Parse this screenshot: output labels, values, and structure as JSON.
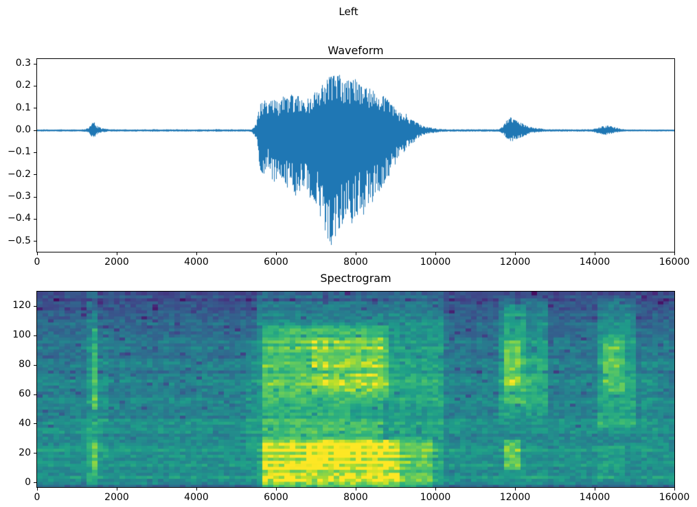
{
  "figure": {
    "title": "Left",
    "background_color": "#ffffff",
    "axis_color": "#000000"
  },
  "chart_data": [
    {
      "type": "line",
      "title": "Waveform",
      "line_color": "#1f77b4",
      "xlim": [
        0,
        16000
      ],
      "ylim": [
        -0.547,
        0.322
      ],
      "x_ticks": [
        {
          "v": 0,
          "label": "0"
        },
        {
          "v": 2000,
          "label": "2000"
        },
        {
          "v": 4000,
          "label": "4000"
        },
        {
          "v": 6000,
          "label": "6000"
        },
        {
          "v": 8000,
          "label": "8000"
        },
        {
          "v": 10000,
          "label": "10000"
        },
        {
          "v": 12000,
          "label": "12000"
        },
        {
          "v": 14000,
          "label": "14000"
        },
        {
          "v": 16000,
          "label": "16000"
        }
      ],
      "y_ticks": [
        {
          "v": 0.3,
          "label": "0.3"
        },
        {
          "v": 0.2,
          "label": "0.2"
        },
        {
          "v": 0.1,
          "label": "0.1"
        },
        {
          "v": 0.0,
          "label": "0.0"
        },
        {
          "v": -0.1,
          "label": "−0.1"
        },
        {
          "v": -0.2,
          "label": "−0.2"
        },
        {
          "v": -0.3,
          "label": "−0.3"
        },
        {
          "v": -0.4,
          "label": "−0.4"
        },
        {
          "v": -0.5,
          "label": "−0.5"
        }
      ],
      "sample_step": 100,
      "peak_positive": 0.27,
      "peak_negative": -0.52,
      "envelope_pos": [
        0.004,
        0.004,
        0.005,
        0.004,
        0.004,
        0.004,
        0.005,
        0.004,
        0.004,
        0.005,
        0.004,
        0.004,
        0.006,
        0.012,
        0.045,
        0.022,
        0.012,
        0.008,
        0.006,
        0.005,
        0.005,
        0.004,
        0.005,
        0.004,
        0.005,
        0.005,
        0.004,
        0.005,
        0.004,
        0.006,
        0.005,
        0.004,
        0.005,
        0.005,
        0.004,
        0.005,
        0.004,
        0.005,
        0.005,
        0.004,
        0.005,
        0.005,
        0.004,
        0.005,
        0.004,
        0.006,
        0.005,
        0.004,
        0.005,
        0.005,
        0.004,
        0.005,
        0.005,
        0.004,
        0.006,
        0.03,
        0.12,
        0.14,
        0.11,
        0.15,
        0.14,
        0.12,
        0.16,
        0.14,
        0.17,
        0.15,
        0.16,
        0.13,
        0.15,
        0.16,
        0.18,
        0.2,
        0.22,
        0.25,
        0.26,
        0.27,
        0.25,
        0.22,
        0.24,
        0.23,
        0.24,
        0.22,
        0.2,
        0.21,
        0.19,
        0.17,
        0.15,
        0.16,
        0.14,
        0.12,
        0.1,
        0.08,
        0.09,
        0.07,
        0.05,
        0.04,
        0.03,
        0.02,
        0.015,
        0.012,
        0.01,
        0.008,
        0.006,
        0.005,
        0.005,
        0.005,
        0.005,
        0.005,
        0.005,
        0.005,
        0.005,
        0.005,
        0.005,
        0.005,
        0.005,
        0.005,
        0.005,
        0.02,
        0.05,
        0.07,
        0.05,
        0.04,
        0.03,
        0.02,
        0.015,
        0.012,
        0.01,
        0.008,
        0.005,
        0.005,
        0.005,
        0.005,
        0.005,
        0.005,
        0.005,
        0.005,
        0.005,
        0.005,
        0.005,
        0.005,
        0.008,
        0.015,
        0.02,
        0.022,
        0.02,
        0.015,
        0.01,
        0.006,
        0.004,
        0.004,
        0.004,
        0.004,
        0.004,
        0.004,
        0.004,
        0.004,
        0.004,
        0.004,
        0.004,
        0.004,
        0.004
      ],
      "envelope_neg": [
        -0.004,
        -0.004,
        -0.005,
        -0.004,
        -0.004,
        -0.004,
        -0.005,
        -0.004,
        -0.004,
        -0.005,
        -0.004,
        -0.004,
        -0.006,
        -0.01,
        -0.04,
        -0.018,
        -0.01,
        -0.007,
        -0.005,
        -0.005,
        -0.005,
        -0.004,
        -0.005,
        -0.004,
        -0.005,
        -0.005,
        -0.004,
        -0.005,
        -0.004,
        -0.006,
        -0.005,
        -0.004,
        -0.005,
        -0.005,
        -0.004,
        -0.005,
        -0.004,
        -0.005,
        -0.005,
        -0.004,
        -0.005,
        -0.005,
        -0.004,
        -0.005,
        -0.004,
        -0.006,
        -0.005,
        -0.004,
        -0.005,
        -0.005,
        -0.004,
        -0.005,
        -0.005,
        -0.004,
        -0.008,
        -0.04,
        -0.18,
        -0.2,
        -0.16,
        -0.22,
        -0.24,
        -0.2,
        -0.23,
        -0.27,
        -0.25,
        -0.3,
        -0.28,
        -0.26,
        -0.32,
        -0.3,
        -0.33,
        -0.38,
        -0.45,
        -0.5,
        -0.52,
        -0.48,
        -0.5,
        -0.42,
        -0.38,
        -0.42,
        -0.4,
        -0.36,
        -0.38,
        -0.35,
        -0.33,
        -0.3,
        -0.28,
        -0.25,
        -0.22,
        -0.2,
        -0.16,
        -0.12,
        -0.1,
        -0.08,
        -0.06,
        -0.05,
        -0.03,
        -0.02,
        -0.015,
        -0.012,
        -0.01,
        -0.008,
        -0.006,
        -0.005,
        -0.005,
        -0.005,
        -0.005,
        -0.005,
        -0.005,
        -0.005,
        -0.005,
        -0.005,
        -0.005,
        -0.005,
        -0.005,
        -0.005,
        -0.005,
        -0.015,
        -0.04,
        -0.05,
        -0.045,
        -0.035,
        -0.03,
        -0.02,
        -0.012,
        -0.01,
        -0.008,
        -0.006,
        -0.005,
        -0.005,
        -0.005,
        -0.005,
        -0.005,
        -0.005,
        -0.005,
        -0.005,
        -0.005,
        -0.005,
        -0.005,
        -0.005,
        -0.008,
        -0.014,
        -0.018,
        -0.02,
        -0.018,
        -0.012,
        -0.008,
        -0.005,
        -0.004,
        -0.004,
        -0.004,
        -0.004,
        -0.004,
        -0.004,
        -0.004,
        -0.004,
        -0.004,
        -0.004,
        -0.004,
        -0.004,
        -0.004
      ]
    },
    {
      "type": "heatmap",
      "title": "Spectrogram",
      "colormap": "viridis",
      "xlim": [
        0,
        16000
      ],
      "ylim_bins": [
        -3,
        130
      ],
      "x_ticks": [
        {
          "v": 0,
          "label": "0"
        },
        {
          "v": 2000,
          "label": "2000"
        },
        {
          "v": 4000,
          "label": "4000"
        },
        {
          "v": 6000,
          "label": "6000"
        },
        {
          "v": 8000,
          "label": "8000"
        },
        {
          "v": 10000,
          "label": "10000"
        },
        {
          "v": 12000,
          "label": "12000"
        },
        {
          "v": 14000,
          "label": "14000"
        },
        {
          "v": 16000,
          "label": "16000"
        }
      ],
      "y_ticks": [
        {
          "v": 0,
          "label": "0"
        },
        {
          "v": 20,
          "label": "20"
        },
        {
          "v": 40,
          "label": "40"
        },
        {
          "v": 60,
          "label": "60"
        },
        {
          "v": 80,
          "label": "80"
        },
        {
          "v": 100,
          "label": "100"
        },
        {
          "v": 120,
          "label": "120"
        }
      ],
      "colormap_stops": [
        [
          0.0,
          "#440154"
        ],
        [
          0.125,
          "#482878"
        ],
        [
          0.25,
          "#3e4989"
        ],
        [
          0.375,
          "#31688e"
        ],
        [
          0.5,
          "#26828e"
        ],
        [
          0.625,
          "#1f9e89"
        ],
        [
          0.75,
          "#35b779"
        ],
        [
          0.875,
          "#6ece58"
        ],
        [
          0.95,
          "#b5de2b"
        ],
        [
          1.0,
          "#fde725"
        ]
      ],
      "grid": {
        "cols": 116,
        "rows": 65
      },
      "base_profile": [
        {
          "f": [
            -3,
            4
          ],
          "v": 0.52
        },
        {
          "f": [
            4,
            28
          ],
          "v": 0.58
        },
        {
          "f": [
            28,
            45
          ],
          "v": 0.54
        },
        {
          "f": [
            45,
            75
          ],
          "v": 0.5
        },
        {
          "f": [
            75,
            100
          ],
          "v": 0.46
        },
        {
          "f": [
            100,
            112
          ],
          "v": 0.4
        },
        {
          "f": [
            112,
            122
          ],
          "v": 0.33
        },
        {
          "f": [
            122,
            131
          ],
          "v": 0.27
        }
      ],
      "region_format": [
        "t0",
        "t1",
        "f0",
        "f1",
        "add"
      ],
      "regions": [
        [
          1300,
          1560,
          -3,
          130,
          0.12
        ],
        [
          1330,
          1530,
          50,
          105,
          0.18
        ],
        [
          1330,
          1530,
          5,
          30,
          0.15
        ],
        [
          1560,
          1780,
          15,
          105,
          0.06
        ],
        [
          5200,
          5500,
          20,
          100,
          0.06
        ],
        [
          5500,
          10200,
          -3,
          130,
          0.1
        ],
        [
          5500,
          10200,
          108,
          124,
          0.06
        ],
        [
          5600,
          9100,
          -3,
          30,
          0.3
        ],
        [
          9100,
          9950,
          -3,
          30,
          0.16
        ],
        [
          5600,
          8800,
          58,
          108,
          0.24
        ],
        [
          6900,
          8700,
          62,
          100,
          0.08
        ],
        [
          6700,
          8800,
          14,
          30,
          0.06
        ],
        [
          5700,
          8700,
          30,
          58,
          0.12
        ],
        [
          8800,
          10200,
          45,
          108,
          0.08
        ],
        [
          7900,
          10100,
          42,
          56,
          -0.06
        ],
        [
          11650,
          12850,
          45,
          126,
          0.15
        ],
        [
          11700,
          12300,
          55,
          122,
          0.12
        ],
        [
          11780,
          12180,
          66,
          98,
          0.12
        ],
        [
          11700,
          12150,
          10,
          30,
          0.26
        ],
        [
          12300,
          12850,
          58,
          88,
          0.06
        ],
        [
          11650,
          12850,
          -3,
          10,
          0.04
        ],
        [
          14050,
          14980,
          38,
          126,
          0.16
        ],
        [
          14150,
          14800,
          60,
          102,
          0.14
        ],
        [
          14250,
          14650,
          74,
          96,
          0.08
        ],
        [
          14100,
          14750,
          4,
          26,
          0.05
        ],
        [
          15200,
          15650,
          25,
          95,
          0.05
        ],
        [
          0,
          16000,
          -3,
          -1,
          -0.12
        ],
        [
          0,
          16000,
          128,
          131,
          -0.04
        ]
      ],
      "noise": {
        "seed": 1234,
        "amplitude": 0.16,
        "speckle_prob": 0.05,
        "speckle_drop": 0.15,
        "row_variation": 0.05
      }
    }
  ]
}
